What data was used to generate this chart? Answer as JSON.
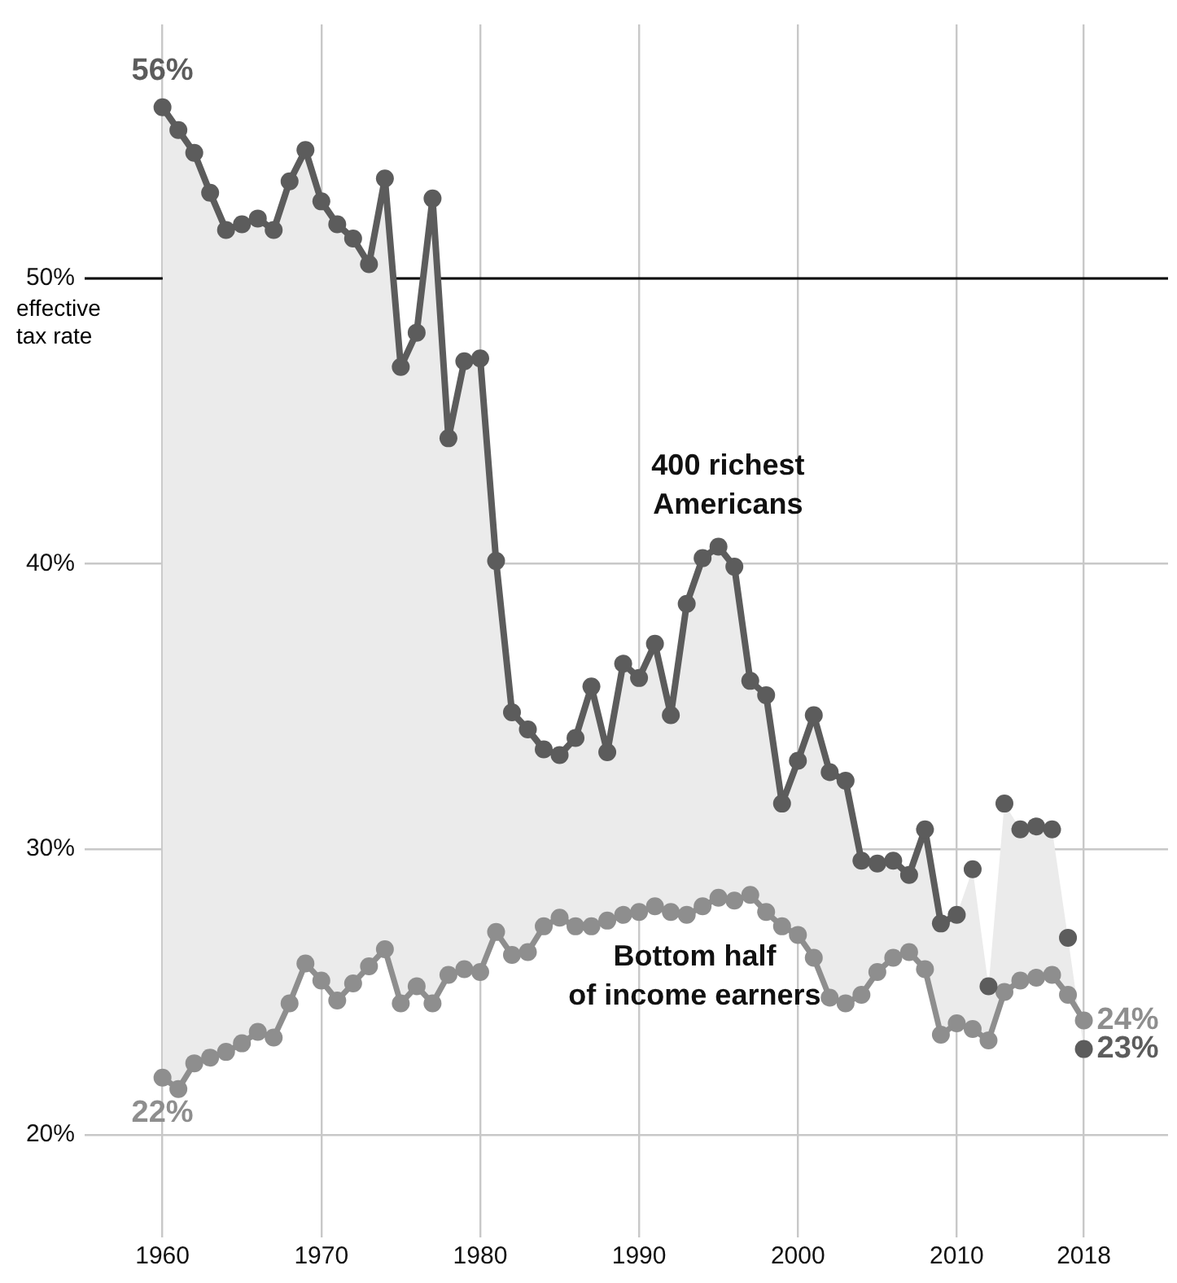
{
  "chart_data": {
    "type": "line",
    "x": [
      1960,
      1961,
      1962,
      1963,
      1964,
      1965,
      1966,
      1967,
      1968,
      1969,
      1970,
      1971,
      1972,
      1973,
      1974,
      1975,
      1976,
      1977,
      1978,
      1979,
      1980,
      1981,
      1982,
      1983,
      1984,
      1985,
      1986,
      1987,
      1988,
      1989,
      1990,
      1991,
      1992,
      1993,
      1994,
      1995,
      1996,
      1997,
      1998,
      1999,
      2000,
      2001,
      2002,
      2003,
      2004,
      2005,
      2006,
      2007,
      2008,
      2009,
      2010,
      2011,
      2012,
      2013,
      2014,
      2015,
      2016,
      2017,
      2018
    ],
    "series": [
      {
        "name": "400 richest Americans",
        "type": "line",
        "color": "#5c5c5c",
        "values": [
          56,
          55.2,
          54.4,
          53.0,
          51.7,
          51.9,
          52.1,
          51.7,
          53.4,
          54.5,
          52.7,
          51.9,
          51.4,
          50.5,
          53.5,
          46.9,
          48.1,
          52.8,
          44.4,
          47.1,
          47.2,
          40.1,
          34.8,
          34.2,
          33.5,
          33.3,
          33.9,
          35.7,
          33.4,
          36.5,
          36.0,
          37.2,
          34.7,
          38.6,
          40.2,
          40.6,
          39.9,
          35.9,
          35.4,
          31.6,
          33.1,
          34.7,
          32.7,
          32.4,
          29.6,
          29.5,
          29.6,
          29.1,
          30.7,
          27.4,
          27.7,
          null,
          null,
          null,
          null,
          null,
          null,
          null,
          null
        ],
        "value_labels": [
          "56%",
          null,
          null,
          null,
          null,
          null,
          null,
          null,
          null,
          null,
          null,
          null,
          null,
          null,
          null,
          null,
          null,
          null,
          null,
          null,
          null,
          null,
          null,
          null,
          null,
          null,
          null,
          null,
          null,
          null,
          null,
          null,
          null,
          null,
          null,
          null,
          null,
          null,
          null,
          null,
          null,
          null,
          null,
          null,
          null,
          null,
          null,
          null,
          null,
          null,
          null,
          null,
          null,
          null,
          null,
          null,
          null,
          null,
          null
        ]
      },
      {
        "type": "scatter",
        "color": "#5c5c5c",
        "values": [
          null,
          null,
          null,
          null,
          null,
          null,
          null,
          null,
          null,
          null,
          null,
          null,
          null,
          null,
          null,
          null,
          null,
          null,
          null,
          null,
          null,
          null,
          null,
          null,
          null,
          null,
          null,
          null,
          null,
          null,
          null,
          null,
          null,
          null,
          null,
          null,
          null,
          null,
          null,
          null,
          null,
          null,
          null,
          null,
          null,
          null,
          null,
          null,
          null,
          null,
          null,
          29.3,
          25.2,
          31.6,
          30.7,
          30.8,
          30.7,
          26.9,
          23
        ],
        "value_labels": [
          null,
          null,
          null,
          null,
          null,
          null,
          null,
          null,
          null,
          null,
          null,
          null,
          null,
          null,
          null,
          null,
          null,
          null,
          null,
          null,
          null,
          null,
          null,
          null,
          null,
          null,
          null,
          null,
          null,
          null,
          null,
          null,
          null,
          null,
          null,
          null,
          null,
          null,
          null,
          null,
          null,
          null,
          null,
          null,
          null,
          null,
          null,
          null,
          null,
          null,
          null,
          null,
          null,
          null,
          null,
          null,
          null,
          null,
          "23%"
        ]
      },
      {
        "name": "Bottom half of income earners",
        "type": "line",
        "color": "#8e8e8e",
        "values": [
          22,
          21.6,
          22.5,
          22.7,
          22.9,
          23.2,
          23.6,
          23.4,
          24.6,
          26.0,
          25.4,
          24.7,
          25.3,
          25.9,
          26.5,
          24.6,
          25.2,
          24.6,
          25.6,
          25.8,
          25.7,
          27.1,
          26.3,
          26.4,
          27.3,
          27.6,
          27.3,
          27.3,
          27.5,
          27.7,
          27.8,
          28.0,
          27.8,
          27.7,
          28.0,
          28.3,
          28.2,
          28.4,
          27.8,
          27.3,
          27.0,
          26.2,
          24.8,
          24.6,
          24.9,
          25.7,
          26.2,
          26.4,
          25.8,
          23.5,
          23.9,
          23.7,
          23.3,
          25.0,
          25.4,
          25.5,
          25.6,
          24.9,
          24
        ],
        "value_labels": [
          "22%",
          null,
          null,
          null,
          null,
          null,
          null,
          null,
          null,
          null,
          null,
          null,
          null,
          null,
          null,
          null,
          null,
          null,
          null,
          null,
          null,
          null,
          null,
          null,
          null,
          null,
          null,
          null,
          null,
          null,
          null,
          null,
          null,
          null,
          null,
          null,
          null,
          null,
          null,
          null,
          null,
          null,
          null,
          null,
          null,
          null,
          null,
          null,
          null,
          null,
          null,
          null,
          null,
          null,
          null,
          null,
          null,
          null,
          "24%"
        ],
        "lower": [
          22,
          21.6,
          22.5,
          22.7,
          22.9,
          23.2,
          23.6,
          23.4,
          24.6,
          26.0,
          25.4,
          24.7,
          25.3,
          25.9,
          26.5,
          24.6,
          25.2,
          24.6,
          25.6,
          25.8,
          25.7,
          27.1,
          26.3,
          26.4,
          27.3,
          27.6,
          27.3,
          27.3,
          27.5,
          27.7,
          27.8,
          28.0,
          27.8,
          27.7,
          28.0,
          28.3,
          28.2,
          28.4,
          27.8,
          27.3,
          27.0,
          26.2,
          24.8,
          24.6,
          24.9,
          25.7,
          26.2,
          26.4,
          25.8,
          23.5,
          23.9,
          23.7,
          23.3,
          25.0,
          25.4,
          25.5,
          25.6,
          24.9,
          24
        ],
        "upper": [
          56,
          55.2,
          54.4,
          53.0,
          51.7,
          51.9,
          52.1,
          51.7,
          53.4,
          54.5,
          52.7,
          51.9,
          51.4,
          50.5,
          53.5,
          46.9,
          48.1,
          52.8,
          44.4,
          47.1,
          47.2,
          40.1,
          34.8,
          34.2,
          33.5,
          33.3,
          33.9,
          35.7,
          33.4,
          36.5,
          36.0,
          37.2,
          34.7,
          38.6,
          40.2,
          40.6,
          39.9,
          35.9,
          35.4,
          31.6,
          33.1,
          34.7,
          32.7,
          32.4,
          29.6,
          29.5,
          29.6,
          29.1,
          30.7,
          27.4,
          27.7,
          29.3,
          25.2,
          31.6,
          30.7,
          30.8,
          30.7,
          26.9,
          23
        ]
      }
    ],
    "xlim": [
      1955.1,
      2023.3
    ],
    "xticks": [
      1960,
      1970,
      1980,
      1990,
      2000,
      2010,
      2018
    ],
    "ylim": [
      16.4,
      58.9
    ],
    "yticks": [
      {
        "value": 20,
        "label": "20%"
      },
      {
        "value": 30,
        "label": "30%"
      },
      {
        "value": 40,
        "label": "40%"
      },
      {
        "value": 50,
        "label": "50%"
      }
    ],
    "ref_lines": [
      {
        "axis": "y",
        "value": 50,
        "label": "effective tax rate",
        "color": "#000000"
      }
    ],
    "grid": true,
    "marker": "circle",
    "legend": false
  }
}
